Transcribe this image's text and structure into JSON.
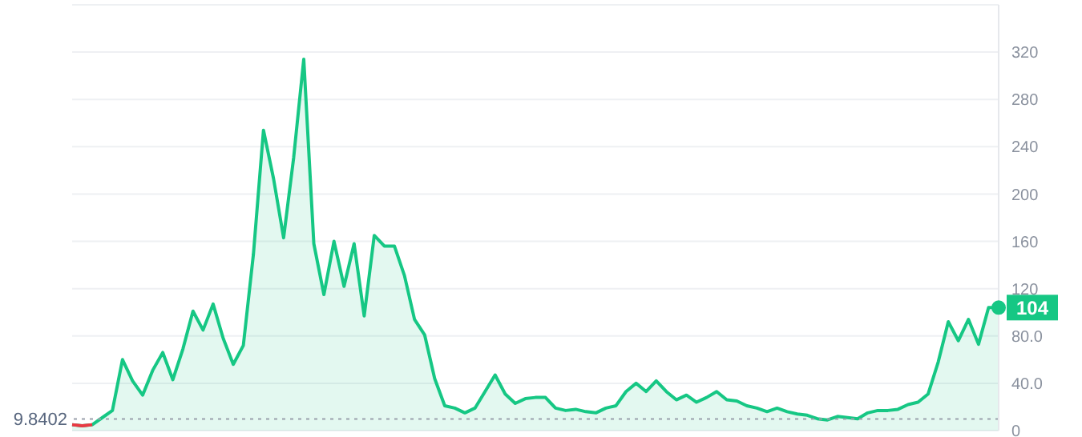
{
  "chart_data": {
    "type": "area",
    "categories": [
      null,
      null,
      null,
      null,
      null,
      null,
      null,
      null,
      null,
      null,
      null,
      null,
      null,
      null,
      null,
      null,
      null,
      null,
      null,
      null,
      null,
      null,
      null,
      null,
      null,
      null,
      null,
      null,
      null,
      null,
      null,
      null,
      null,
      null,
      null,
      null,
      null,
      null,
      null,
      null,
      null,
      null,
      null,
      null,
      null,
      null,
      null,
      null,
      null,
      null,
      null,
      null,
      null,
      null,
      null,
      null,
      null,
      null,
      null,
      null,
      null,
      null,
      null,
      null,
      null,
      null,
      null,
      null,
      null,
      null,
      null,
      null,
      null,
      null,
      null,
      null,
      null,
      null,
      null,
      null,
      null,
      null,
      null,
      null,
      null,
      null,
      null,
      null,
      null,
      null,
      null,
      null,
      null
    ],
    "series": [
      {
        "type": "line",
        "color": "#ea3943",
        "values": [
          5,
          4,
          5,
          null,
          null,
          null,
          null,
          null,
          null,
          null,
          null,
          null,
          null,
          null,
          null,
          null,
          null,
          null,
          null,
          null,
          null,
          null,
          null,
          null,
          null,
          null,
          null,
          null,
          null,
          null,
          null,
          null,
          null,
          null,
          null,
          null,
          null,
          null,
          null,
          null,
          null,
          null,
          null,
          null,
          null,
          null,
          null,
          null,
          null,
          null,
          null,
          null,
          null,
          null,
          null,
          null,
          null,
          null,
          null,
          null,
          null,
          null,
          null,
          null,
          null,
          null,
          null,
          null,
          null,
          null,
          null,
          null,
          null,
          null,
          null,
          null,
          null,
          null,
          null,
          null,
          null,
          null,
          null,
          null,
          null,
          null,
          null,
          null,
          null,
          null,
          null,
          null,
          null
        ]
      },
      {
        "color": "#16c784",
        "values": [
          5,
          4,
          5,
          11,
          17,
          60,
          42,
          30,
          51,
          66,
          43,
          69,
          101,
          85,
          107,
          78,
          56,
          72,
          149,
          254,
          213,
          163,
          231,
          314,
          158,
          115,
          160,
          122,
          158,
          97,
          165,
          156,
          156,
          131,
          94,
          81,
          44,
          21,
          19,
          15,
          19,
          33,
          47,
          31,
          23,
          27,
          28,
          28,
          19,
          17,
          18,
          16,
          15,
          19,
          21,
          33,
          40,
          33,
          42,
          33,
          26,
          30,
          24,
          28,
          33,
          26,
          25,
          21,
          19,
          16,
          19,
          16,
          14,
          13,
          10,
          9,
          12,
          11,
          10,
          15,
          17,
          17,
          18,
          22,
          24,
          31,
          58,
          92,
          76,
          94,
          73,
          104,
          104
        ],
        "value_labels": [
          null,
          null,
          null,
          null,
          null,
          null,
          null,
          null,
          null,
          null,
          null,
          null,
          null,
          null,
          null,
          null,
          null,
          null,
          null,
          null,
          null,
          null,
          null,
          null,
          null,
          null,
          null,
          null,
          null,
          null,
          null,
          null,
          null,
          null,
          null,
          null,
          null,
          null,
          null,
          null,
          null,
          null,
          null,
          null,
          null,
          null,
          null,
          null,
          null,
          null,
          null,
          null,
          null,
          null,
          null,
          null,
          null,
          null,
          null,
          null,
          null,
          null,
          null,
          null,
          null,
          null,
          null,
          null,
          null,
          null,
          null,
          null,
          null,
          null,
          null,
          null,
          null,
          null,
          null,
          null,
          null,
          null,
          null,
          null,
          null,
          null,
          null,
          null,
          null,
          null,
          null,
          null,
          "104"
        ]
      }
    ],
    "ylim": [
      0,
      360
    ],
    "yticks": [
      0,
      {
        "value": 40,
        "label": "40.0"
      },
      {
        "value": 80,
        "label": "80.0"
      },
      120,
      160,
      200,
      240,
      280,
      320
    ],
    "ref_lines": [
      {
        "axis": "y",
        "value": 9.8402,
        "label": "9.8402",
        "color": "#9aa0ab",
        "line_style": "dotted"
      }
    ],
    "grid": "y",
    "legend": false
  }
}
